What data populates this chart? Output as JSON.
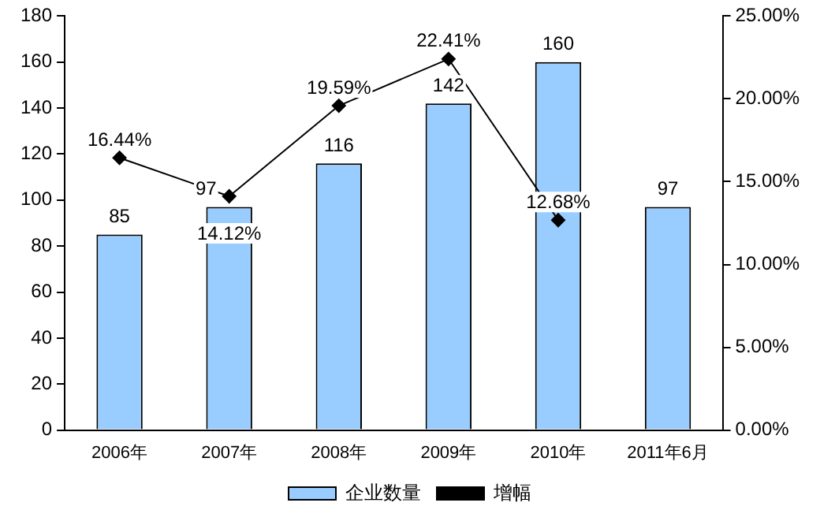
{
  "chart_data": {
    "type": "bar",
    "categories": [
      "2006年",
      "2007年",
      "2008年",
      "2009年",
      "2010年",
      "2011年6月"
    ],
    "series": [
      {
        "name": "企业数量",
        "type": "bar",
        "color": "#99ccff",
        "values": [
          85,
          97,
          116,
          142,
          160,
          97
        ],
        "value_labels": [
          "85",
          "97",
          "116",
          "142",
          "160",
          "97"
        ]
      },
      {
        "name": "增幅",
        "type": "line",
        "axis": "y2",
        "color": "#000000",
        "values": [
          16.44,
          14.12,
          19.59,
          22.41,
          12.68,
          null
        ],
        "value_labels": [
          "16.44%",
          "14.12%",
          "19.59%",
          "22.41%",
          "12.68%",
          null
        ]
      }
    ],
    "ylim": [
      0,
      180
    ],
    "yticks": [
      0,
      20,
      40,
      60,
      80,
      100,
      120,
      140,
      160,
      180
    ],
    "y2lim": [
      0,
      25
    ],
    "y2ticks": [
      {
        "value": 0,
        "label": "0.00%"
      },
      {
        "value": 5,
        "label": "5.00%"
      },
      {
        "value": 10,
        "label": "10.00%"
      },
      {
        "value": 15,
        "label": "15.00%"
      },
      {
        "value": 20,
        "label": "20.00%"
      },
      {
        "value": 25,
        "label": "25.00%"
      }
    ],
    "grid": false,
    "legend": "bottom",
    "marker": "diamond",
    "line_style": "solid"
  }
}
